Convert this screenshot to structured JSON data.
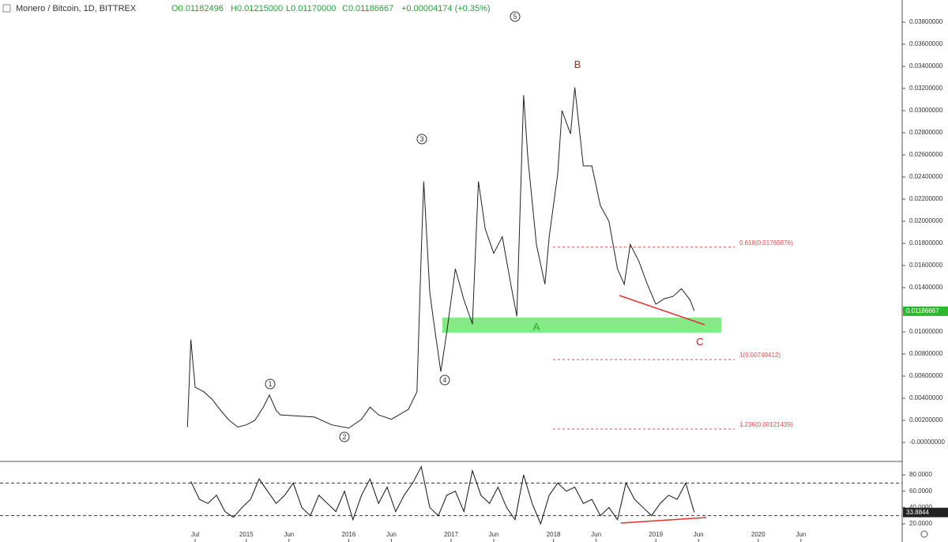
{
  "header": {
    "symbol": "Monero / Bitcoin, 1D, BITTREX",
    "open": "O0.01182496",
    "high": "H0.01215000",
    "low": "L0.01170000",
    "close": "C0.01186667",
    "change": "+0.00004174 (+0.35%)"
  },
  "chart_data": [
    {
      "type": "line",
      "color": "#222222",
      "x": [
        -0.9,
        -0.5,
        0,
        1,
        2,
        3,
        4,
        5,
        6,
        7,
        8,
        8.7,
        9.5,
        10,
        12,
        14,
        16,
        18,
        19.5,
        20.5,
        21.5,
        23,
        25,
        26,
        26.5,
        26.8,
        27.5,
        28,
        28.8,
        29.5,
        30.5,
        31.5,
        32.5,
        33.2,
        34,
        35,
        36,
        37,
        37.7,
        38.5,
        39,
        40,
        41,
        41.5,
        42.5,
        43,
        44,
        44.5,
        45.5,
        46.5,
        47.5,
        48.5,
        49.5,
        50.3,
        51,
        52,
        53,
        54,
        55,
        56,
        57,
        58,
        58.5
      ],
      "values": [
        0.0014,
        0.0093,
        0.005,
        0.0046,
        0.0039,
        0.0029,
        0.002,
        0.0014,
        0.0016,
        0.002,
        0.0032,
        0.0043,
        0.0029,
        0.0025,
        0.0024,
        0.0023,
        0.0016,
        0.0013,
        0.0021,
        0.0032,
        0.0025,
        0.0021,
        0.003,
        0.0046,
        0.0171,
        0.0236,
        0.0136,
        0.0107,
        0.0064,
        0.01,
        0.0157,
        0.0129,
        0.0107,
        0.0236,
        0.0193,
        0.0171,
        0.0186,
        0.0143,
        0.0114,
        0.0314,
        0.0257,
        0.0179,
        0.0143,
        0.0186,
        0.0243,
        0.03,
        0.0279,
        0.0321,
        0.025,
        0.025,
        0.0214,
        0.02,
        0.0157,
        0.0143,
        0.0179,
        0.0164,
        0.0143,
        0.0125,
        0.013,
        0.0132,
        0.0139,
        0.0129,
        0.0119
      ],
      "xlim": [
        -22.87,
        82.87
      ],
      "xticks": [
        {
          "value": 0,
          "label": "Jul"
        },
        {
          "value": 6,
          "label": "2015"
        },
        {
          "value": 11,
          "label": "Jun"
        },
        {
          "value": 18,
          "label": "2016"
        },
        {
          "value": 23,
          "label": "Jun"
        },
        {
          "value": 30,
          "label": "2017"
        },
        {
          "value": 35,
          "label": "Jun"
        },
        {
          "value": 42,
          "label": "2018"
        },
        {
          "value": 47,
          "label": "Jun"
        },
        {
          "value": 54,
          "label": "2019"
        },
        {
          "value": 59,
          "label": "Jun"
        },
        {
          "value": 66,
          "label": "2020"
        },
        {
          "value": 71,
          "label": "Jun"
        }
      ],
      "ylim": [
        -0.00171,
        0.04
      ],
      "yticks": [
        {
          "value": 0,
          "label": "-0.00000000"
        },
        {
          "value": 0.002,
          "label": "0.00200000"
        },
        {
          "value": 0.004,
          "label": "0.00400000"
        },
        {
          "value": 0.006,
          "label": "0.00600000"
        },
        {
          "value": 0.008,
          "label": "0.00800000"
        },
        {
          "value": 0.01,
          "label": "0.01000000"
        },
        {
          "value": 0.012,
          "label": "0.01200000"
        },
        {
          "value": 0.014,
          "label": "0.01400000"
        },
        {
          "value": 0.016,
          "label": "0.01600000"
        },
        {
          "value": 0.018,
          "label": "0.01800000"
        },
        {
          "value": 0.02,
          "label": "0.02000000"
        },
        {
          "value": 0.022,
          "label": "0.02200000"
        },
        {
          "value": 0.024,
          "label": "0.02400000"
        },
        {
          "value": 0.026,
          "label": "0.02600000"
        },
        {
          "value": 0.028,
          "label": "0.02800000"
        },
        {
          "value": 0.03,
          "label": "0.03000000"
        },
        {
          "value": 0.032,
          "label": "0.03200000"
        },
        {
          "value": 0.034,
          "label": "0.03400000"
        },
        {
          "value": 0.036,
          "label": "0.03600000"
        },
        {
          "value": 0.038,
          "label": "0.03800000"
        }
      ],
      "last_price": {
        "value": 0.01186667,
        "label": "0.01186667"
      },
      "fib_levels": [
        {
          "value": 0.01765876,
          "label": "0.618(0.01765876)"
        },
        {
          "value": 0.00749412,
          "label": "1(0.00749412)"
        },
        {
          "value": 0.00121439,
          "label": "1.236(0.00121439)"
        }
      ],
      "annotations": [
        {
          "text": "1",
          "color": "#333333"
        },
        {
          "text": "2",
          "color": "#333333"
        },
        {
          "text": "3",
          "color": "#333333"
        },
        {
          "text": "4",
          "color": "#333333"
        },
        {
          "text": "5",
          "color": "#333333"
        },
        {
          "text": "A",
          "color": "#2e9e2e"
        },
        {
          "text": "B",
          "color": "#b22222"
        },
        {
          "text": "C",
          "color": "#b22222"
        }
      ]
    },
    {
      "type": "line",
      "color": "#111111",
      "x": [
        -0.5,
        0.5,
        1.5,
        2.5,
        3.5,
        4.5,
        5.5,
        6.5,
        7.5,
        8.5,
        9.5,
        10.5,
        11.5,
        12.5,
        13.5,
        14.5,
        15.5,
        16.5,
        17.5,
        18.5,
        19.5,
        20.5,
        21.5,
        22.5,
        23.5,
        24.5,
        25.5,
        26.5,
        27.5,
        28.5,
        29.5,
        30.5,
        31.5,
        32.5,
        33.5,
        34.5,
        35.5,
        36.5,
        37.5,
        38.5,
        39.5,
        40.5,
        41.5,
        42.5,
        43.5,
        44.5,
        45.5,
        46.5,
        47.5,
        48.5,
        49.5,
        50.5,
        51.5,
        52.5,
        53.5,
        54.5,
        55.5,
        56.5,
        57.5,
        58.5
      ],
      "values": [
        72,
        50,
        45,
        55,
        35,
        28,
        40,
        50,
        75,
        60,
        45,
        55,
        70,
        40,
        30,
        55,
        45,
        35,
        60,
        25,
        55,
        75,
        45,
        65,
        35,
        55,
        70,
        90,
        40,
        30,
        55,
        60,
        35,
        85,
        55,
        45,
        65,
        40,
        25,
        80,
        45,
        20,
        55,
        70,
        60,
        65,
        45,
        50,
        30,
        40,
        25,
        70,
        50,
        40,
        30,
        45,
        55,
        50,
        70,
        34
      ],
      "xlim": [
        -22.87,
        82.87
      ],
      "ylim": [
        -2.26,
        96.45
      ],
      "yticks": [
        {
          "value": 80,
          "label": "80.0000"
        },
        {
          "value": 60,
          "label": "60.0000"
        },
        {
          "value": 40,
          "label": "40.0000"
        },
        {
          "value": 20,
          "label": "20.0000"
        }
      ],
      "levels": [
        70,
        30
      ],
      "last_value": {
        "value": 33.8844,
        "label": "33.8844"
      }
    }
  ]
}
